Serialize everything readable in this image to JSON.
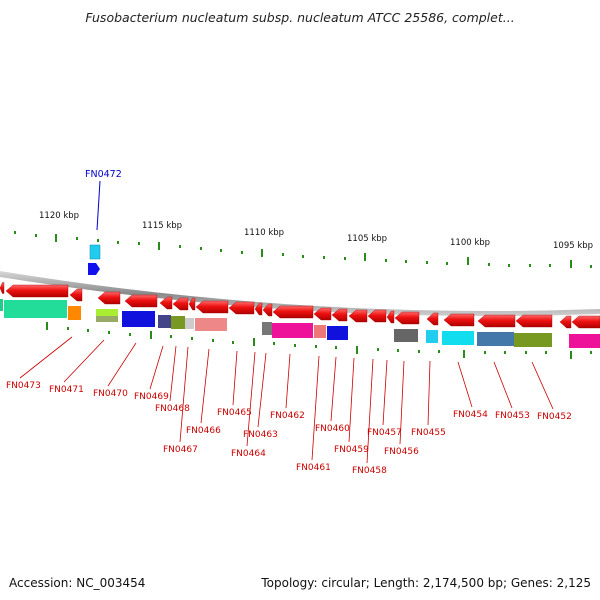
{
  "title": "Fusobacterium nucleatum subsp. nucleatum ATCC 25586, complet...",
  "footer": {
    "accession": "Accession: NC_003454",
    "summary": "Topology: circular; Length: 2,174,500 bp; Genes: 2,125"
  },
  "scale_labels": [
    "1120 kbp",
    "1115 kbp",
    "1110 kbp",
    "1105 kbp",
    "1100 kbp",
    "1095 kbp"
  ],
  "highlighted_gene": "FN0472",
  "gene_labels": [
    "FN0473",
    "FN0471",
    "FN0470",
    "FN0469",
    "FN0468",
    "FN0467",
    "FN0466",
    "FN0465",
    "FN0464",
    "FN0463",
    "FN0462",
    "FN0461",
    "FN0460",
    "FN0459",
    "FN0458",
    "FN0457",
    "FN0456",
    "FN0455",
    "FN0454",
    "FN0453",
    "FN0452"
  ],
  "colors": {
    "gene": "#ee1111",
    "label": "#cc0000",
    "highlight": "#0000cc",
    "backbone": "#999999",
    "tick": "#2a8a1a"
  }
}
